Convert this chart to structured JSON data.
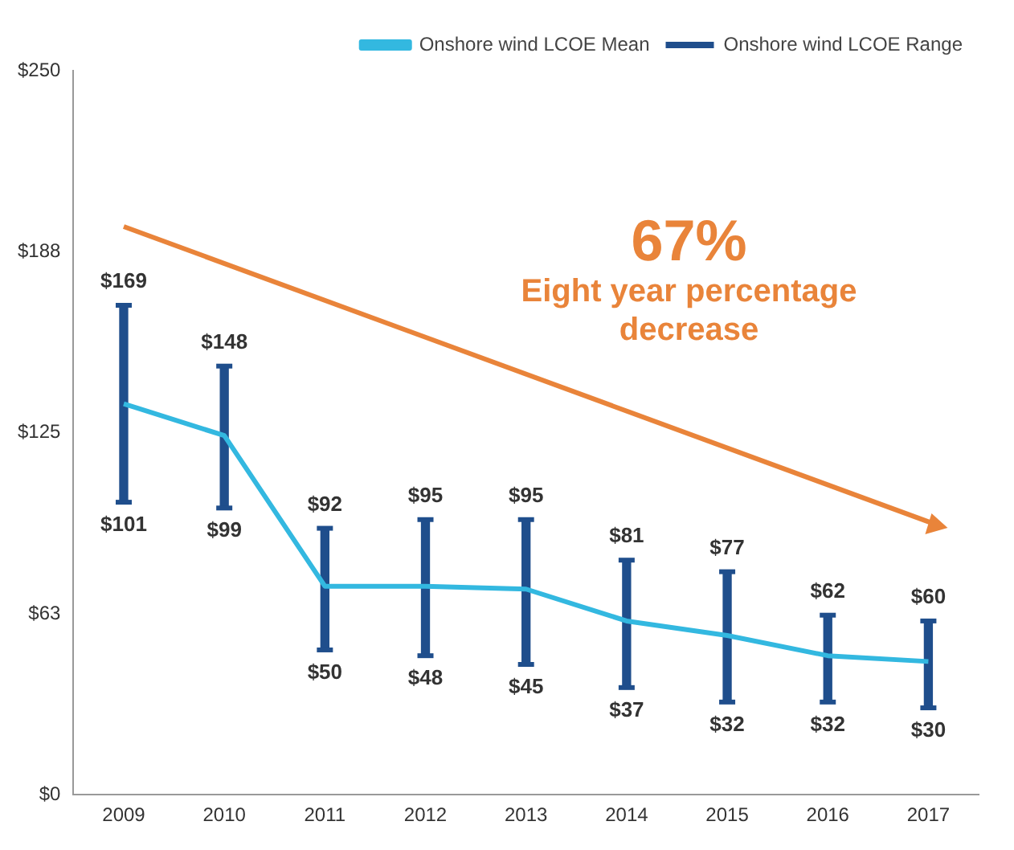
{
  "chart_data": {
    "type": "line",
    "categories": [
      "2009",
      "2010",
      "2011",
      "2012",
      "2013",
      "2014",
      "2015",
      "2016",
      "2017"
    ],
    "series": [
      {
        "name": "Onshore wind LCOE Mean",
        "color": "#33b8e0",
        "values": [
          135,
          124,
          72,
          72,
          71,
          60,
          55,
          48,
          46
        ]
      },
      {
        "name": "Onshore wind LCOE Range",
        "type": "bar",
        "color": "#1f4e8c",
        "base": [
          101,
          99,
          50,
          48,
          45,
          37,
          32,
          32,
          30
        ],
        "values": [
          68,
          49,
          42,
          47,
          50,
          44,
          45,
          30,
          30
        ]
      }
    ],
    "ylim": [
      0,
      250
    ],
    "yticks": [
      {
        "value": 0,
        "label": "$0"
      },
      {
        "value": 62.5,
        "label": "$63"
      },
      {
        "value": 125,
        "label": "$125"
      },
      {
        "value": 187.5,
        "label": "$188"
      },
      {
        "value": 250,
        "label": "$250"
      }
    ],
    "grid": false,
    "legend": "top right",
    "marker": "none",
    "annotations": [
      "67%",
      "Eight year percentage decrease",
      {
        "text": "$169",
        "x": "2009",
        "y": 169
      },
      {
        "text": "$101",
        "x": "2009",
        "y": 101
      },
      {
        "text": "$148",
        "x": "2010",
        "y": 148
      },
      {
        "text": "$99",
        "x": "2010",
        "y": 99
      },
      {
        "text": "$92",
        "x": "2011",
        "y": 92
      },
      {
        "text": "$50",
        "x": "2011",
        "y": 50
      },
      {
        "text": "$95",
        "x": "2012",
        "y": 95
      },
      {
        "text": "$48",
        "x": "2012",
        "y": 48
      },
      {
        "text": "$95",
        "x": "2013",
        "y": 95
      },
      {
        "text": "$45",
        "x": "2013",
        "y": 45
      },
      {
        "text": "$81",
        "x": "2014",
        "y": 81
      },
      {
        "text": "$37",
        "x": "2014",
        "y": 37
      },
      {
        "text": "$77",
        "x": "2015",
        "y": 77
      },
      {
        "text": "$32",
        "x": "2015",
        "y": 32
      },
      {
        "text": "$62",
        "x": "2016",
        "y": 62
      },
      {
        "text": "$32",
        "x": "2016",
        "y": 32
      },
      {
        "text": "$60",
        "x": "2017",
        "y": 60
      },
      {
        "text": "$30",
        "x": "2017",
        "y": 30
      }
    ]
  }
}
